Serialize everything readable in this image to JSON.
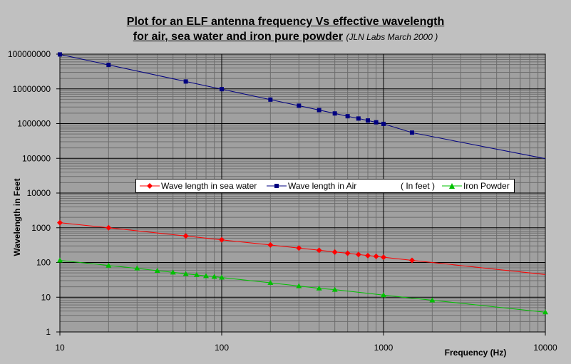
{
  "title_line1": "Plot for an ELF antenna frequency Vs effective wavelength",
  "title_line2_main": "for air, sea water and iron pure powder",
  "title_line2_sub": "(JLN Labs March 2000 )",
  "legend": {
    "sea": "Wave length in sea water",
    "air": "Wave length in Air",
    "unit": "( In feet )",
    "iron": "Iron Powder"
  },
  "colors": {
    "background": "#c0c0c0",
    "plot_area": "#a0a0a0",
    "sea": "#ff0000",
    "air": "#000080",
    "iron": "#00c000"
  },
  "chart_data": {
    "type": "scatter",
    "title": "Plot for an ELF antenna frequency Vs effective wavelength for air, sea water and iron pure powder (JLN Labs March 2000 )",
    "xlabel": "Frequency (Hz)",
    "ylabel": "Wavelength in Feet",
    "xscale": "log",
    "yscale": "log",
    "xlim": [
      10,
      10000
    ],
    "ylim": [
      1,
      100000000
    ],
    "grid": true,
    "legend_position": "center",
    "x_tick_labels": [
      "10",
      "100",
      "1000",
      "10000"
    ],
    "y_tick_labels": [
      "1",
      "10",
      "100",
      "1000",
      "10000",
      "100000",
      "1000000",
      "10000000",
      "100000000"
    ],
    "series": [
      {
        "name": "Wave length in sea water",
        "color": "#ff0000",
        "marker": "diamond",
        "x": [
          10,
          20,
          60,
          100,
          200,
          300,
          400,
          500,
          600,
          700,
          800,
          900,
          1000,
          1500
        ],
        "y": [
          1400,
          1000,
          580,
          450,
          320,
          260,
          225,
          200,
          185,
          170,
          158,
          150,
          142,
          115
        ],
        "trend_to": [
          10000,
          45
        ]
      },
      {
        "name": "Wave length in Air",
        "color": "#000080",
        "marker": "square",
        "x": [
          10,
          20,
          60,
          100,
          200,
          300,
          400,
          500,
          600,
          700,
          800,
          900,
          1000,
          1500
        ],
        "y": [
          98000000,
          49000000,
          16300000,
          9800000,
          4900000,
          3270000,
          2450000,
          1960000,
          1630000,
          1400000,
          1230000,
          1090000,
          980000,
          550000
        ],
        "trend_to": [
          10000,
          98000
        ]
      },
      {
        "name": "Iron Powder",
        "color": "#00c000",
        "marker": "triangle",
        "x": [
          10,
          20,
          30,
          40,
          50,
          60,
          70,
          80,
          90,
          100,
          200,
          300,
          400,
          500,
          1000,
          2000,
          10000
        ],
        "y": [
          115,
          82,
          68,
          58,
          52,
          47,
          44,
          41,
          39,
          37,
          26,
          21,
          18,
          16.5,
          11.5,
          8.2,
          3.7
        ],
        "trend_to": [
          10000,
          3.7
        ]
      }
    ]
  }
}
